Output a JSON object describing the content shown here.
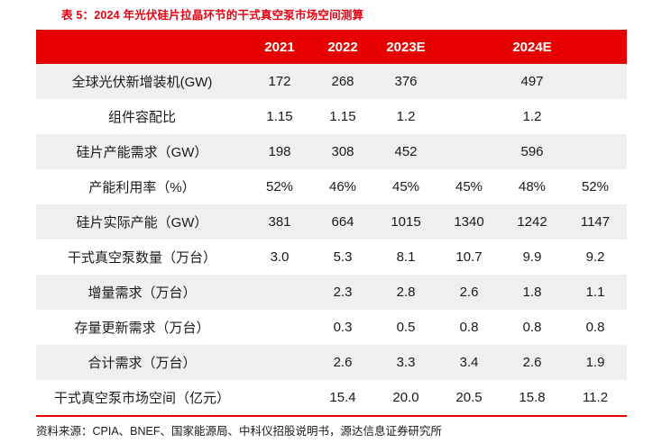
{
  "title": "表 5：2024 年光伏硅片拉晶环节的干式真空泵市场空间测算",
  "source": "资料来源：CPIA、BNEF、国家能源局、中科仪招股说明书，源达信息证券研究所",
  "colors": {
    "header_bg": "#e60000",
    "alt_row_bg": "#efefef",
    "title_color": "#e60012"
  },
  "table": {
    "headers": [
      "",
      "2021",
      "2022",
      "2023E",
      "",
      "2024E",
      ""
    ],
    "rows": [
      {
        "label": "全球光伏新增装机(GW)",
        "values": [
          "172",
          "268",
          "376",
          "",
          "497",
          ""
        ]
      },
      {
        "label": "组件容配比",
        "values": [
          "1.15",
          "1.15",
          "1.2",
          "",
          "1.2",
          ""
        ]
      },
      {
        "label": "硅片产能需求（GW）",
        "values": [
          "198",
          "308",
          "452",
          "",
          "596",
          ""
        ]
      },
      {
        "label": "产能利用率（%）",
        "values": [
          "52%",
          "46%",
          "45%",
          "45%",
          "48%",
          "52%"
        ]
      },
      {
        "label": "硅片实际产能（GW）",
        "values": [
          "381",
          "664",
          "1015",
          "1340",
          "1242",
          "1147"
        ]
      },
      {
        "label": "干式真空泵数量（万台）",
        "values": [
          "3.0",
          "5.3",
          "8.1",
          "10.7",
          "9.9",
          "9.2"
        ]
      },
      {
        "label": "增量需求（万台）",
        "values": [
          "",
          "2.3",
          "2.8",
          "2.6",
          "1.8",
          "1.1"
        ]
      },
      {
        "label": "存量更新需求（万台）",
        "values": [
          "",
          "0.3",
          "0.5",
          "0.8",
          "0.8",
          "0.8"
        ]
      },
      {
        "label": "合计需求（万台）",
        "values": [
          "",
          "2.6",
          "3.3",
          "3.4",
          "2.6",
          "1.9"
        ]
      },
      {
        "label": "干式真空泵市场空间（亿元）",
        "values": [
          "",
          "15.4",
          "20.0",
          "20.5",
          "15.8",
          "11.2"
        ]
      }
    ]
  }
}
